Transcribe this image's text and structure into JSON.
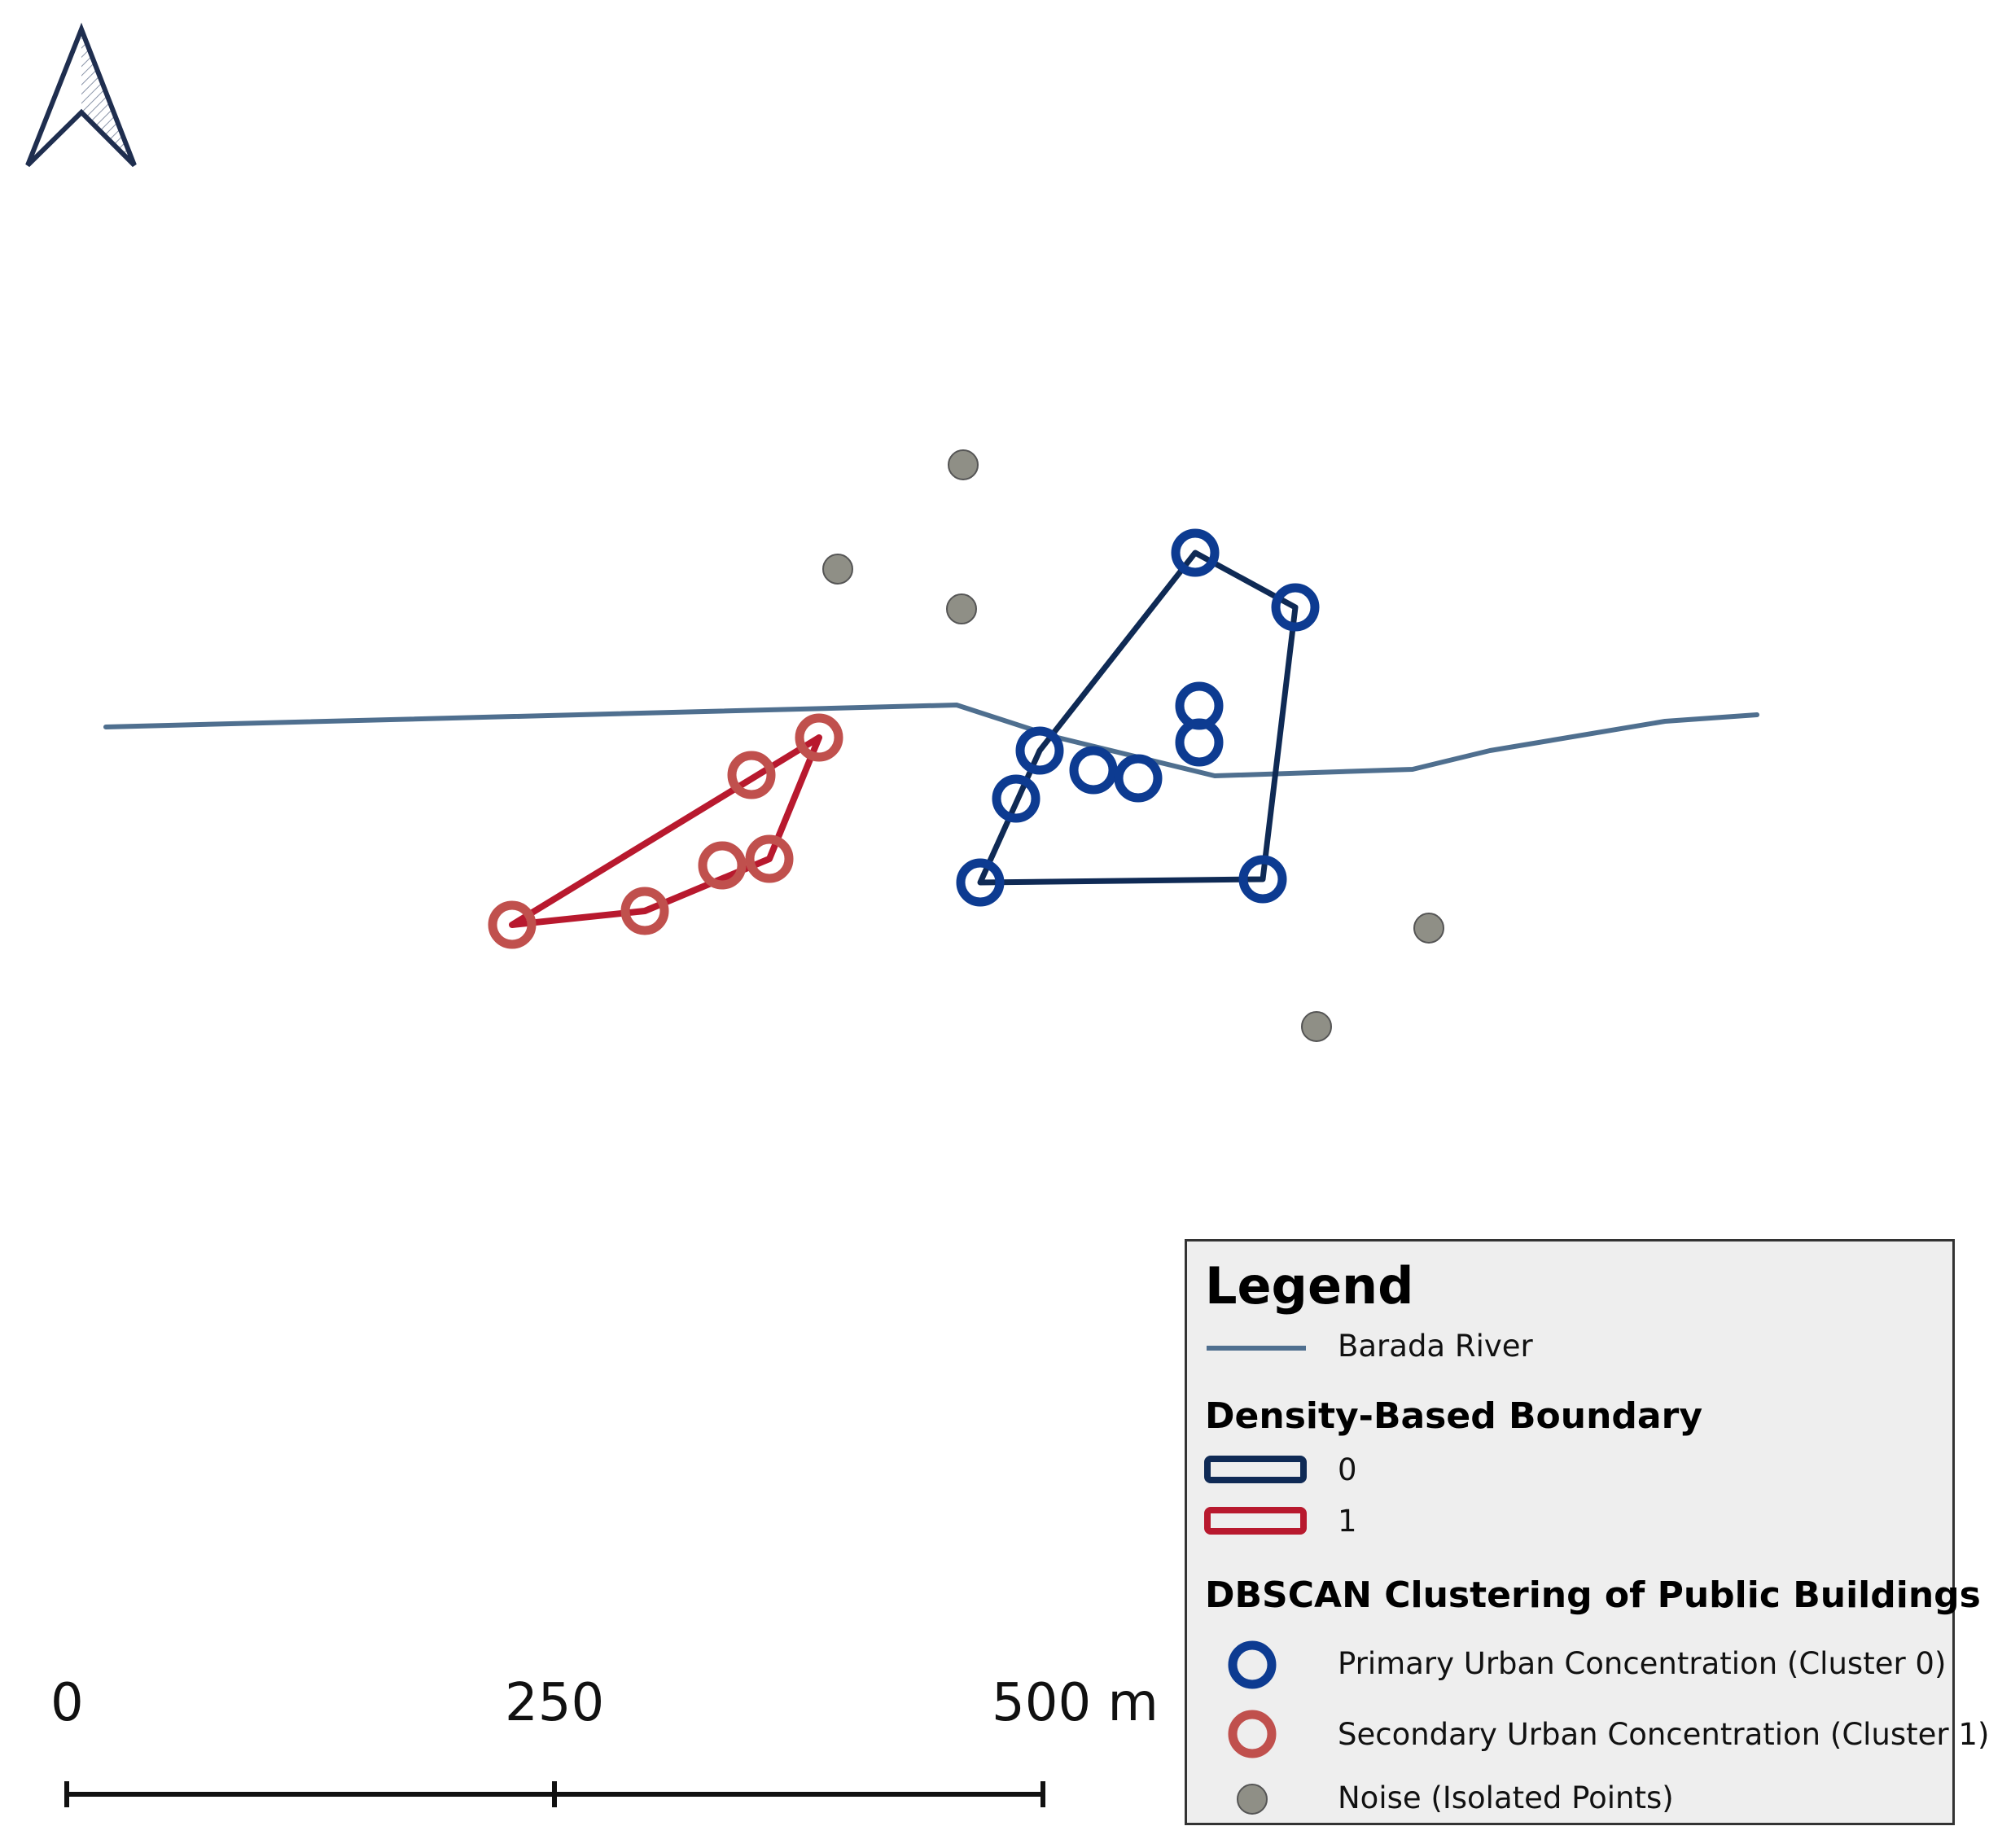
{
  "colors": {
    "river": "#4f6f8f",
    "boundary_0": "#0f2a55",
    "boundary_1": "#b8192e",
    "cluster_0_marker": "#0d3b91",
    "cluster_1_marker": "#c0504d",
    "noise_fill": "#8f8f86",
    "north_arrow": "#1f2e4f",
    "legend_background": "#eeeeee"
  },
  "north_arrow": {
    "icon": "north-arrow-icon"
  },
  "scale_bar": {
    "labels": [
      "0",
      "250",
      "500 m"
    ],
    "values_m": [
      0,
      250,
      500
    ]
  },
  "legend": {
    "title": "Legend",
    "river_label": "Barada River",
    "boundary_heading": "Density-Based Boundary",
    "boundary_items": [
      {
        "label": "0",
        "color": "#0f2a55"
      },
      {
        "label": "1",
        "color": "#b8192e"
      }
    ],
    "clustering_heading": "DBSCAN Clustering of Public Buildings",
    "cluster_items": [
      {
        "label": "Primary Urban Concentration (Cluster 0)",
        "symbol": "hollow-circle",
        "color": "#0d3b91"
      },
      {
        "label": "Secondary Urban Concentration (Cluster 1)",
        "symbol": "hollow-circle",
        "color": "#c0504d"
      },
      {
        "label": "Noise (Isolated Points)",
        "symbol": "filled-circle",
        "color": "#8f8f86"
      }
    ]
  }
}
